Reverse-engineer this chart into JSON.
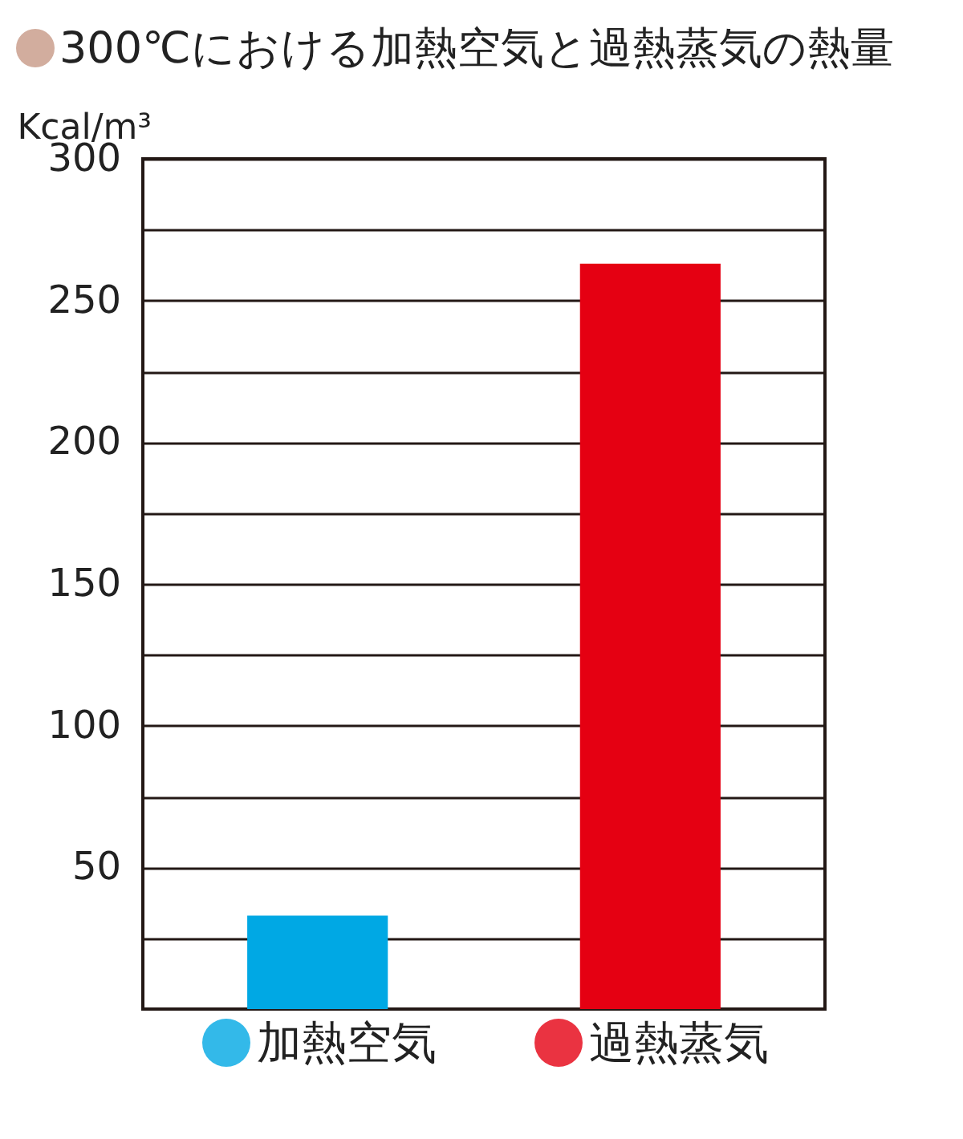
{
  "chart_data": {
    "type": "bar",
    "title": "300℃における加熱空気と過熱蒸気の熱量",
    "ylabel": "Kcal/m³",
    "categories": [
      "加熱空気",
      "過熱蒸気"
    ],
    "values": [
      33,
      263
    ],
    "colors": [
      "#00a8e4",
      "#e50012"
    ],
    "ylim": [
      0,
      300
    ],
    "yticks": [
      {
        "value": 25,
        "label": null
      },
      50,
      {
        "value": 75,
        "label": null
      },
      100,
      {
        "value": 125,
        "label": null
      },
      150,
      {
        "value": 175,
        "label": null
      },
      200,
      {
        "value": 225,
        "label": null
      },
      250,
      {
        "value": 275,
        "label": null
      },
      300
    ],
    "grid": true
  }
}
